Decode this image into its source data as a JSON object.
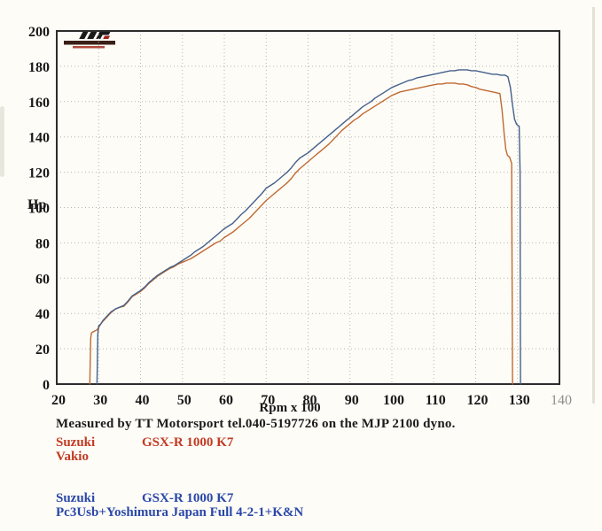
{
  "chart_data": {
    "type": "line",
    "title": "",
    "xlabel": "Rpm x 100",
    "ylabel": "Hp",
    "xlim": [
      20,
      140
    ],
    "ylim": [
      0,
      200
    ],
    "x_ticks": [
      20,
      30,
      40,
      50,
      60,
      70,
      80,
      90,
      100,
      110,
      120,
      130,
      140
    ],
    "y_ticks": [
      0,
      20,
      40,
      60,
      80,
      100,
      120,
      140,
      160,
      180,
      200
    ],
    "grid": true,
    "legend_position": "none",
    "series": [
      {
        "name": "Suzuki GSX-R 1000 K7 Vakio",
        "color": "#c06a33",
        "points": [
          [
            27.9,
            0
          ],
          [
            28.1,
            26
          ],
          [
            28.3,
            29
          ],
          [
            29,
            30
          ],
          [
            29.5,
            30.5
          ],
          [
            30,
            32
          ],
          [
            30.5,
            34
          ],
          [
            31,
            35.5
          ],
          [
            32,
            38
          ],
          [
            33,
            40.5
          ],
          [
            34,
            42.5
          ],
          [
            35,
            43.5
          ],
          [
            36,
            44
          ],
          [
            37,
            46.5
          ],
          [
            38,
            49.5
          ],
          [
            39,
            51
          ],
          [
            40,
            52.5
          ],
          [
            41,
            54.5
          ],
          [
            42,
            57
          ],
          [
            43,
            59
          ],
          [
            44,
            61
          ],
          [
            45,
            62.5
          ],
          [
            46,
            64
          ],
          [
            47,
            65.5
          ],
          [
            48,
            66.5
          ],
          [
            49,
            68
          ],
          [
            50,
            69
          ],
          [
            51,
            70
          ],
          [
            52,
            71
          ],
          [
            53,
            72.5
          ],
          [
            54,
            74
          ],
          [
            55,
            75.5
          ],
          [
            56,
            77
          ],
          [
            57,
            78.5
          ],
          [
            58,
            80
          ],
          [
            59,
            81
          ],
          [
            60,
            83
          ],
          [
            61,
            84.5
          ],
          [
            62,
            86
          ],
          [
            63,
            88
          ],
          [
            64,
            90
          ],
          [
            65,
            92
          ],
          [
            66,
            94
          ],
          [
            67,
            96.5
          ],
          [
            68,
            99
          ],
          [
            69,
            101.5
          ],
          [
            70,
            104
          ],
          [
            71,
            106
          ],
          [
            72,
            108
          ],
          [
            73,
            110
          ],
          [
            74,
            112
          ],
          [
            75,
            114
          ],
          [
            76,
            116.5
          ],
          [
            77,
            119.5
          ],
          [
            78,
            122
          ],
          [
            79,
            124
          ],
          [
            80,
            126
          ],
          [
            81,
            128
          ],
          [
            82,
            130
          ],
          [
            83,
            132
          ],
          [
            84,
            134
          ],
          [
            85,
            136
          ],
          [
            86,
            138.5
          ],
          [
            87,
            141
          ],
          [
            88,
            143.5
          ],
          [
            89,
            145.5
          ],
          [
            90,
            147.5
          ],
          [
            91,
            149.5
          ],
          [
            92,
            151
          ],
          [
            93,
            153
          ],
          [
            94,
            154.5
          ],
          [
            95,
            156
          ],
          [
            96,
            157.5
          ],
          [
            97,
            159
          ],
          [
            98,
            160.5
          ],
          [
            99,
            162
          ],
          [
            100,
            163.5
          ],
          [
            101,
            164.5
          ],
          [
            102,
            165.5
          ],
          [
            103,
            166
          ],
          [
            104,
            166.5
          ],
          [
            105,
            167
          ],
          [
            106,
            167.5
          ],
          [
            107,
            168
          ],
          [
            108,
            168.5
          ],
          [
            109,
            169
          ],
          [
            110,
            169.5
          ],
          [
            111,
            170
          ],
          [
            112,
            170
          ],
          [
            113,
            170.5
          ],
          [
            114,
            170.5
          ],
          [
            115,
            170.5
          ],
          [
            116,
            170
          ],
          [
            117,
            170
          ],
          [
            118,
            169.5
          ],
          [
            119,
            168.5
          ],
          [
            120,
            168
          ],
          [
            121,
            167
          ],
          [
            122,
            166.5
          ],
          [
            123,
            166
          ],
          [
            124,
            165.5
          ],
          [
            125,
            165
          ],
          [
            125.8,
            164.5
          ],
          [
            126.3,
            155
          ],
          [
            126.8,
            142
          ],
          [
            127.2,
            133
          ],
          [
            127.6,
            129.5
          ],
          [
            128.1,
            128.5
          ],
          [
            128.6,
            125
          ],
          [
            128.7,
            60
          ],
          [
            128.8,
            0
          ]
        ]
      },
      {
        "name": "Suzuki GSX-R 1000 K7 Pc3Usb+Yoshimura Japan Full 4-2-1+K&N",
        "color": "#46608c",
        "points": [
          [
            29.6,
            0
          ],
          [
            29.8,
            28
          ],
          [
            30,
            33
          ],
          [
            30.5,
            34
          ],
          [
            31,
            36
          ],
          [
            32,
            38.5
          ],
          [
            33,
            41
          ],
          [
            34,
            42.5
          ],
          [
            35,
            43.5
          ],
          [
            36,
            44.5
          ],
          [
            37,
            47
          ],
          [
            38,
            50
          ],
          [
            39,
            51.5
          ],
          [
            40,
            53
          ],
          [
            41,
            55
          ],
          [
            42,
            57.5
          ],
          [
            43,
            59.5
          ],
          [
            44,
            61.5
          ],
          [
            45,
            63
          ],
          [
            46,
            64.5
          ],
          [
            47,
            66
          ],
          [
            48,
            67
          ],
          [
            49,
            68.5
          ],
          [
            50,
            70
          ],
          [
            51,
            71.5
          ],
          [
            52,
            73
          ],
          [
            53,
            75
          ],
          [
            54,
            76.5
          ],
          [
            55,
            78
          ],
          [
            56,
            80
          ],
          [
            57,
            82
          ],
          [
            58,
            84
          ],
          [
            59,
            86
          ],
          [
            60,
            88
          ],
          [
            61,
            89.5
          ],
          [
            62,
            91
          ],
          [
            63,
            93.5
          ],
          [
            64,
            96
          ],
          [
            65,
            98
          ],
          [
            66,
            100.5
          ],
          [
            67,
            103
          ],
          [
            68,
            105.5
          ],
          [
            69,
            108
          ],
          [
            70,
            111
          ],
          [
            71,
            112.5
          ],
          [
            72,
            114
          ],
          [
            73,
            116
          ],
          [
            74,
            118
          ],
          [
            75,
            120
          ],
          [
            76,
            122.5
          ],
          [
            77,
            125.5
          ],
          [
            78,
            128
          ],
          [
            79,
            129.5
          ],
          [
            80,
            131
          ],
          [
            81,
            133
          ],
          [
            82,
            135
          ],
          [
            83,
            137
          ],
          [
            84,
            139
          ],
          [
            85,
            141
          ],
          [
            86,
            143
          ],
          [
            87,
            145
          ],
          [
            88,
            147
          ],
          [
            89,
            149
          ],
          [
            90,
            151
          ],
          [
            91,
            153
          ],
          [
            92,
            155
          ],
          [
            93,
            157
          ],
          [
            94,
            158.5
          ],
          [
            95,
            160
          ],
          [
            96,
            162
          ],
          [
            97,
            163.5
          ],
          [
            98,
            165
          ],
          [
            99,
            166.5
          ],
          [
            100,
            168
          ],
          [
            101,
            169
          ],
          [
            102,
            170
          ],
          [
            103,
            171
          ],
          [
            104,
            172
          ],
          [
            105,
            172.5
          ],
          [
            106,
            173.5
          ],
          [
            107,
            174
          ],
          [
            108,
            174.5
          ],
          [
            109,
            175
          ],
          [
            110,
            175.5
          ],
          [
            111,
            176
          ],
          [
            112,
            176.5
          ],
          [
            113,
            177
          ],
          [
            114,
            177.5
          ],
          [
            115,
            177.5
          ],
          [
            116,
            178
          ],
          [
            117,
            178
          ],
          [
            118,
            178
          ],
          [
            119,
            177.5
          ],
          [
            120,
            177.5
          ],
          [
            121,
            177
          ],
          [
            122,
            176.5
          ],
          [
            123,
            176
          ],
          [
            124,
            175.5
          ],
          [
            125,
            175.5
          ],
          [
            126,
            175
          ],
          [
            127,
            175
          ],
          [
            127.7,
            174
          ],
          [
            128.3,
            168
          ],
          [
            128.8,
            158
          ],
          [
            129.3,
            150
          ],
          [
            129.8,
            147
          ],
          [
            130.4,
            146
          ],
          [
            130.6,
            120
          ],
          [
            130.65,
            60
          ],
          [
            130.7,
            0
          ]
        ]
      }
    ]
  },
  "footer": {
    "measured_line": "Measured by TT Motorsport tel.040-5197726 on the MJP 2100 dyno.",
    "run1": {
      "make": "Suzuki",
      "model": "GSX-R 1000 K7",
      "config": "Vakio",
      "color": "#c23a22"
    },
    "run2": {
      "make": "Suzuki",
      "model": "GSX-R 1000 K7",
      "config": "Pc3Usb+Yoshimura Japan Full 4-2-1+K&N",
      "color": "#2a47a8"
    }
  },
  "logo": {
    "icon": "mjp-logo"
  }
}
